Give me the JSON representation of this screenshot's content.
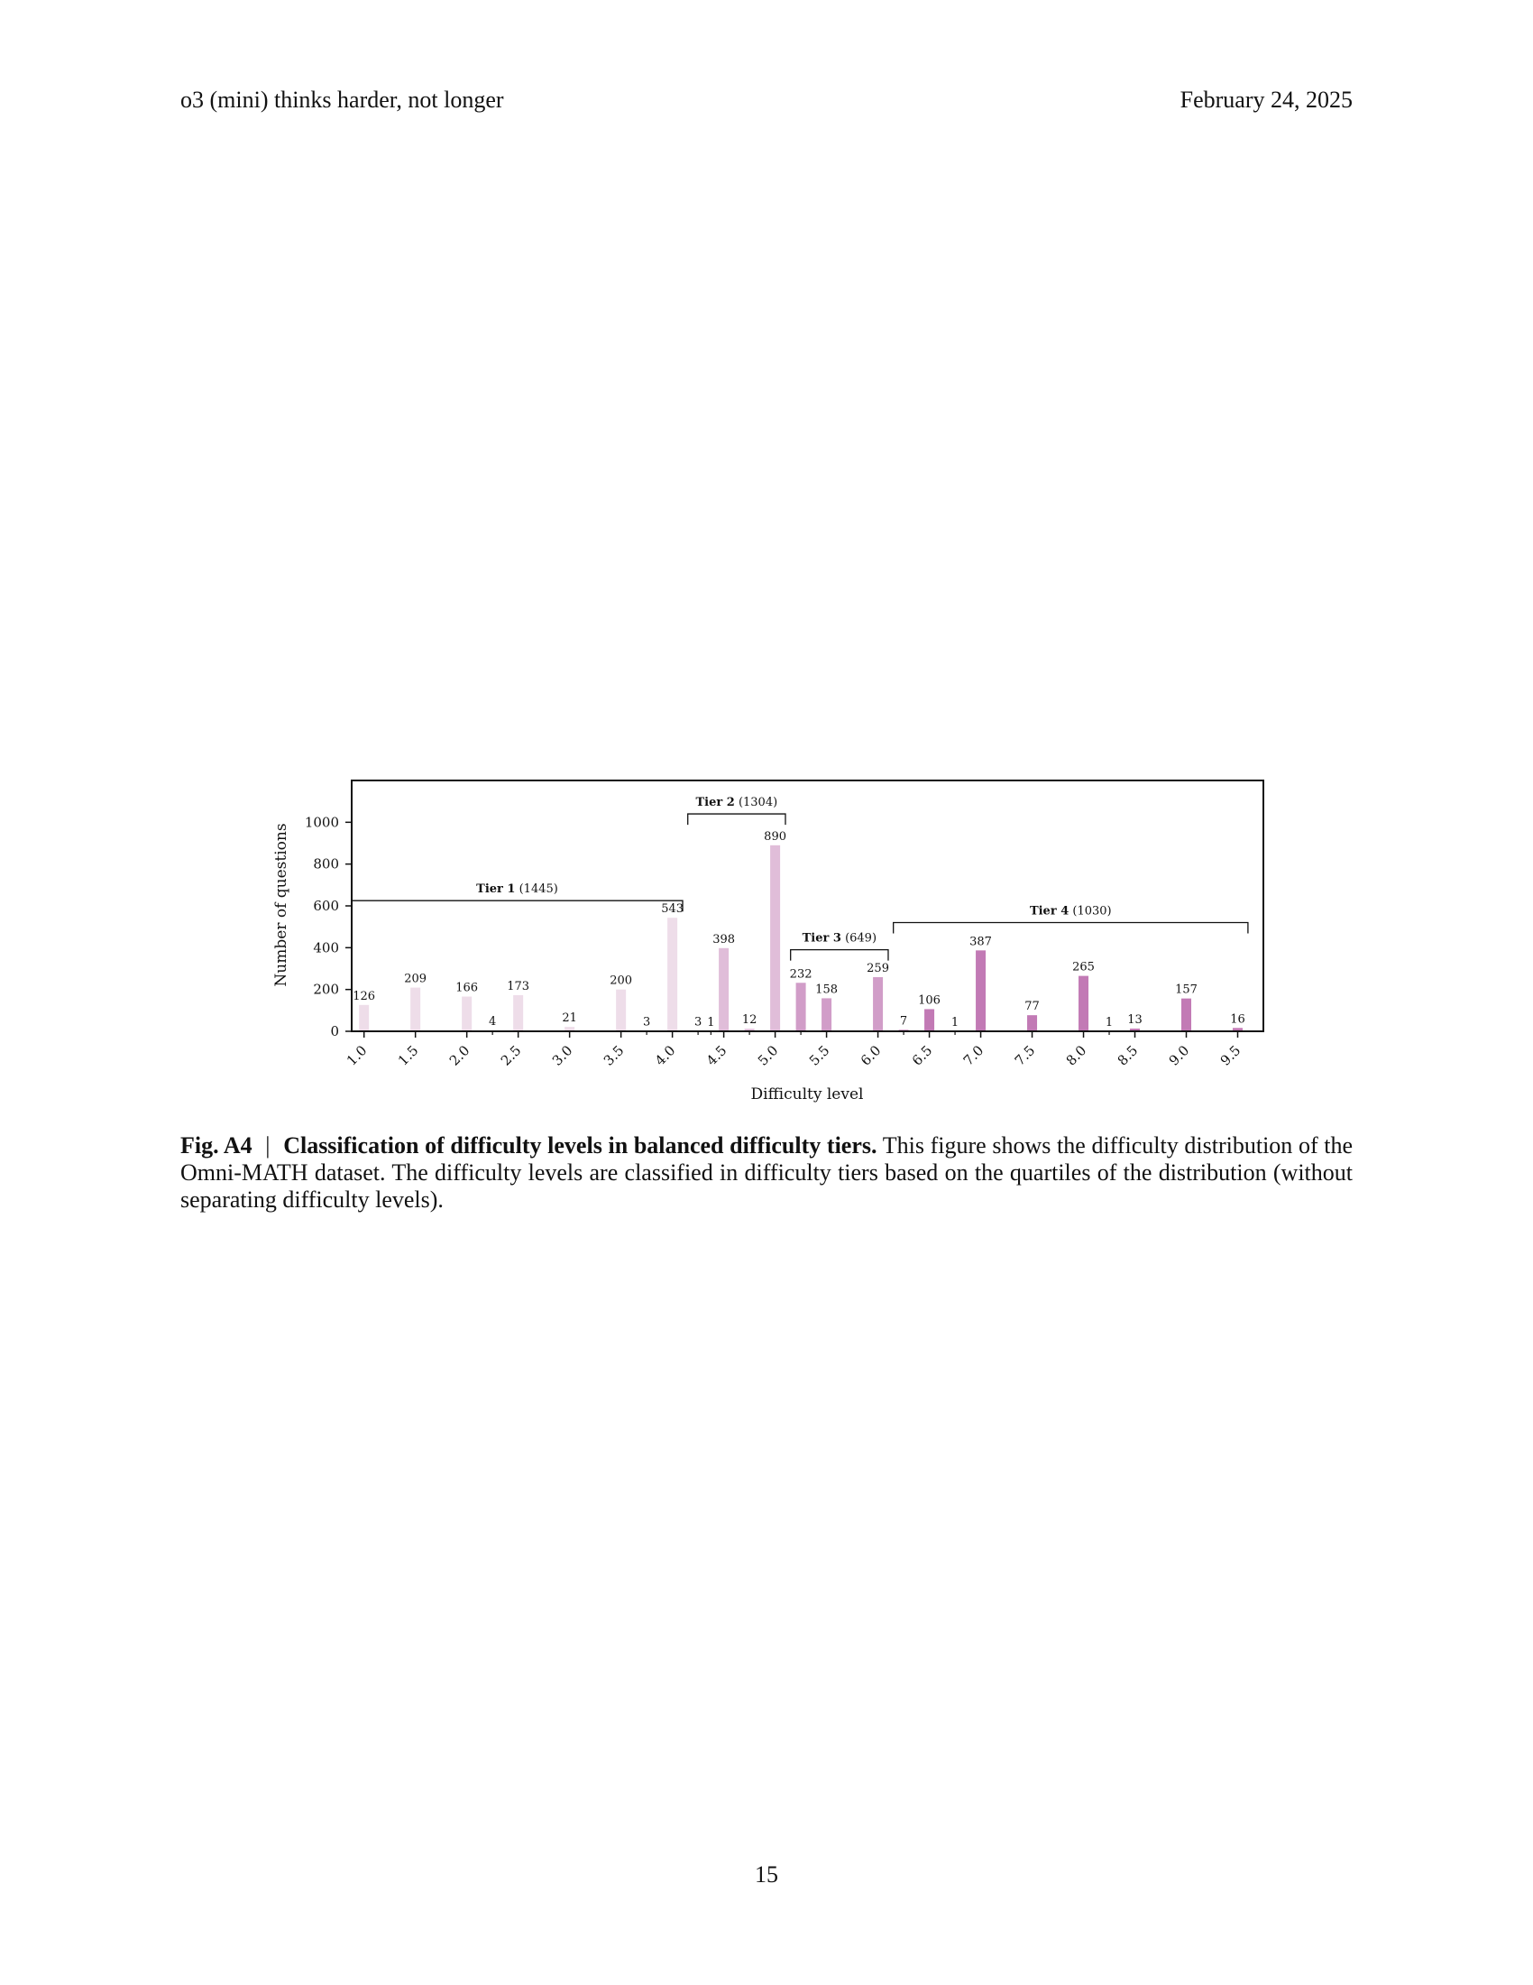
{
  "header": {
    "left": "o3 (mini) thinks harder, not longer",
    "right": "February 24, 2025"
  },
  "chart_data": {
    "type": "bar",
    "xlabel": "Difficulty level",
    "ylabel": "Number of questions",
    "ylim": [
      0,
      1200
    ],
    "yticks": [
      0,
      200,
      400,
      600,
      800,
      1000
    ],
    "x_ticks": [
      "1.0",
      "1.5",
      "2.0",
      "2.5",
      "3.0",
      "3.5",
      "4.0",
      "4.5",
      "5.0",
      "5.5",
      "6.0",
      "6.5",
      "7.0",
      "7.5",
      "8.0",
      "8.5",
      "9.0",
      "9.5"
    ],
    "x_range": [
      0.88,
      9.75
    ],
    "bars": [
      {
        "x": 1.0,
        "value": 126,
        "tier": 1
      },
      {
        "x": 1.5,
        "value": 209,
        "tier": 1
      },
      {
        "x": 2.0,
        "value": 166,
        "tier": 1
      },
      {
        "x": 2.25,
        "value": 4,
        "tier": 1
      },
      {
        "x": 2.5,
        "value": 173,
        "tier": 1
      },
      {
        "x": 3.0,
        "value": 21,
        "tier": 1
      },
      {
        "x": 3.5,
        "value": 200,
        "tier": 1
      },
      {
        "x": 3.75,
        "value": 3,
        "tier": 1
      },
      {
        "x": 4.0,
        "value": 543,
        "tier": 1
      },
      {
        "x": 4.25,
        "value": 3,
        "tier": 2
      },
      {
        "x": 4.375,
        "value": 1,
        "tier": 2
      },
      {
        "x": 4.5,
        "value": 398,
        "tier": 2
      },
      {
        "x": 4.75,
        "value": 12,
        "tier": 2
      },
      {
        "x": 5.0,
        "value": 890,
        "tier": 2
      },
      {
        "x": 5.25,
        "value": 232,
        "tier": 3
      },
      {
        "x": 5.5,
        "value": 158,
        "tier": 3
      },
      {
        "x": 6.0,
        "value": 259,
        "tier": 3
      },
      {
        "x": 6.25,
        "value": 7,
        "tier": 4
      },
      {
        "x": 6.5,
        "value": 106,
        "tier": 4
      },
      {
        "x": 6.75,
        "value": 1,
        "tier": 4
      },
      {
        "x": 7.0,
        "value": 387,
        "tier": 4
      },
      {
        "x": 7.5,
        "value": 77,
        "tier": 4
      },
      {
        "x": 8.0,
        "value": 265,
        "tier": 4
      },
      {
        "x": 8.25,
        "value": 1,
        "tier": 4
      },
      {
        "x": 8.5,
        "value": 13,
        "tier": 4
      },
      {
        "x": 9.0,
        "value": 157,
        "tier": 4
      },
      {
        "x": 9.5,
        "value": 16,
        "tier": 4
      }
    ],
    "tier_colors": [
      "#eedde9",
      "#e0bdd9",
      "#d19dc8",
      "#c27ab5"
    ],
    "tiers": [
      {
        "name": "Tier 1",
        "count": "(1445)",
        "x_start": 0.88,
        "x_end": 4.1,
        "level": 625
      },
      {
        "name": "Tier 2",
        "count": "(1304)",
        "x_start": 4.15,
        "x_end": 5.1,
        "level": 1040
      },
      {
        "name": "Tier 3",
        "count": "(649)",
        "x_start": 5.15,
        "x_end": 6.1,
        "level": 390
      },
      {
        "name": "Tier 4",
        "count": "(1030)",
        "x_start": 6.15,
        "x_end": 9.6,
        "level": 520
      }
    ]
  },
  "caption": {
    "label": "Fig. A4",
    "separator": "|",
    "title": "Classification of difficulty levels in balanced difficulty tiers.",
    "text": "This figure shows the difficulty distribution of the Omni-MATH dataset. The difficulty levels are classified in difficulty tiers based on the quartiles of the distribution (without separating difficulty levels)."
  },
  "page_number": "15"
}
